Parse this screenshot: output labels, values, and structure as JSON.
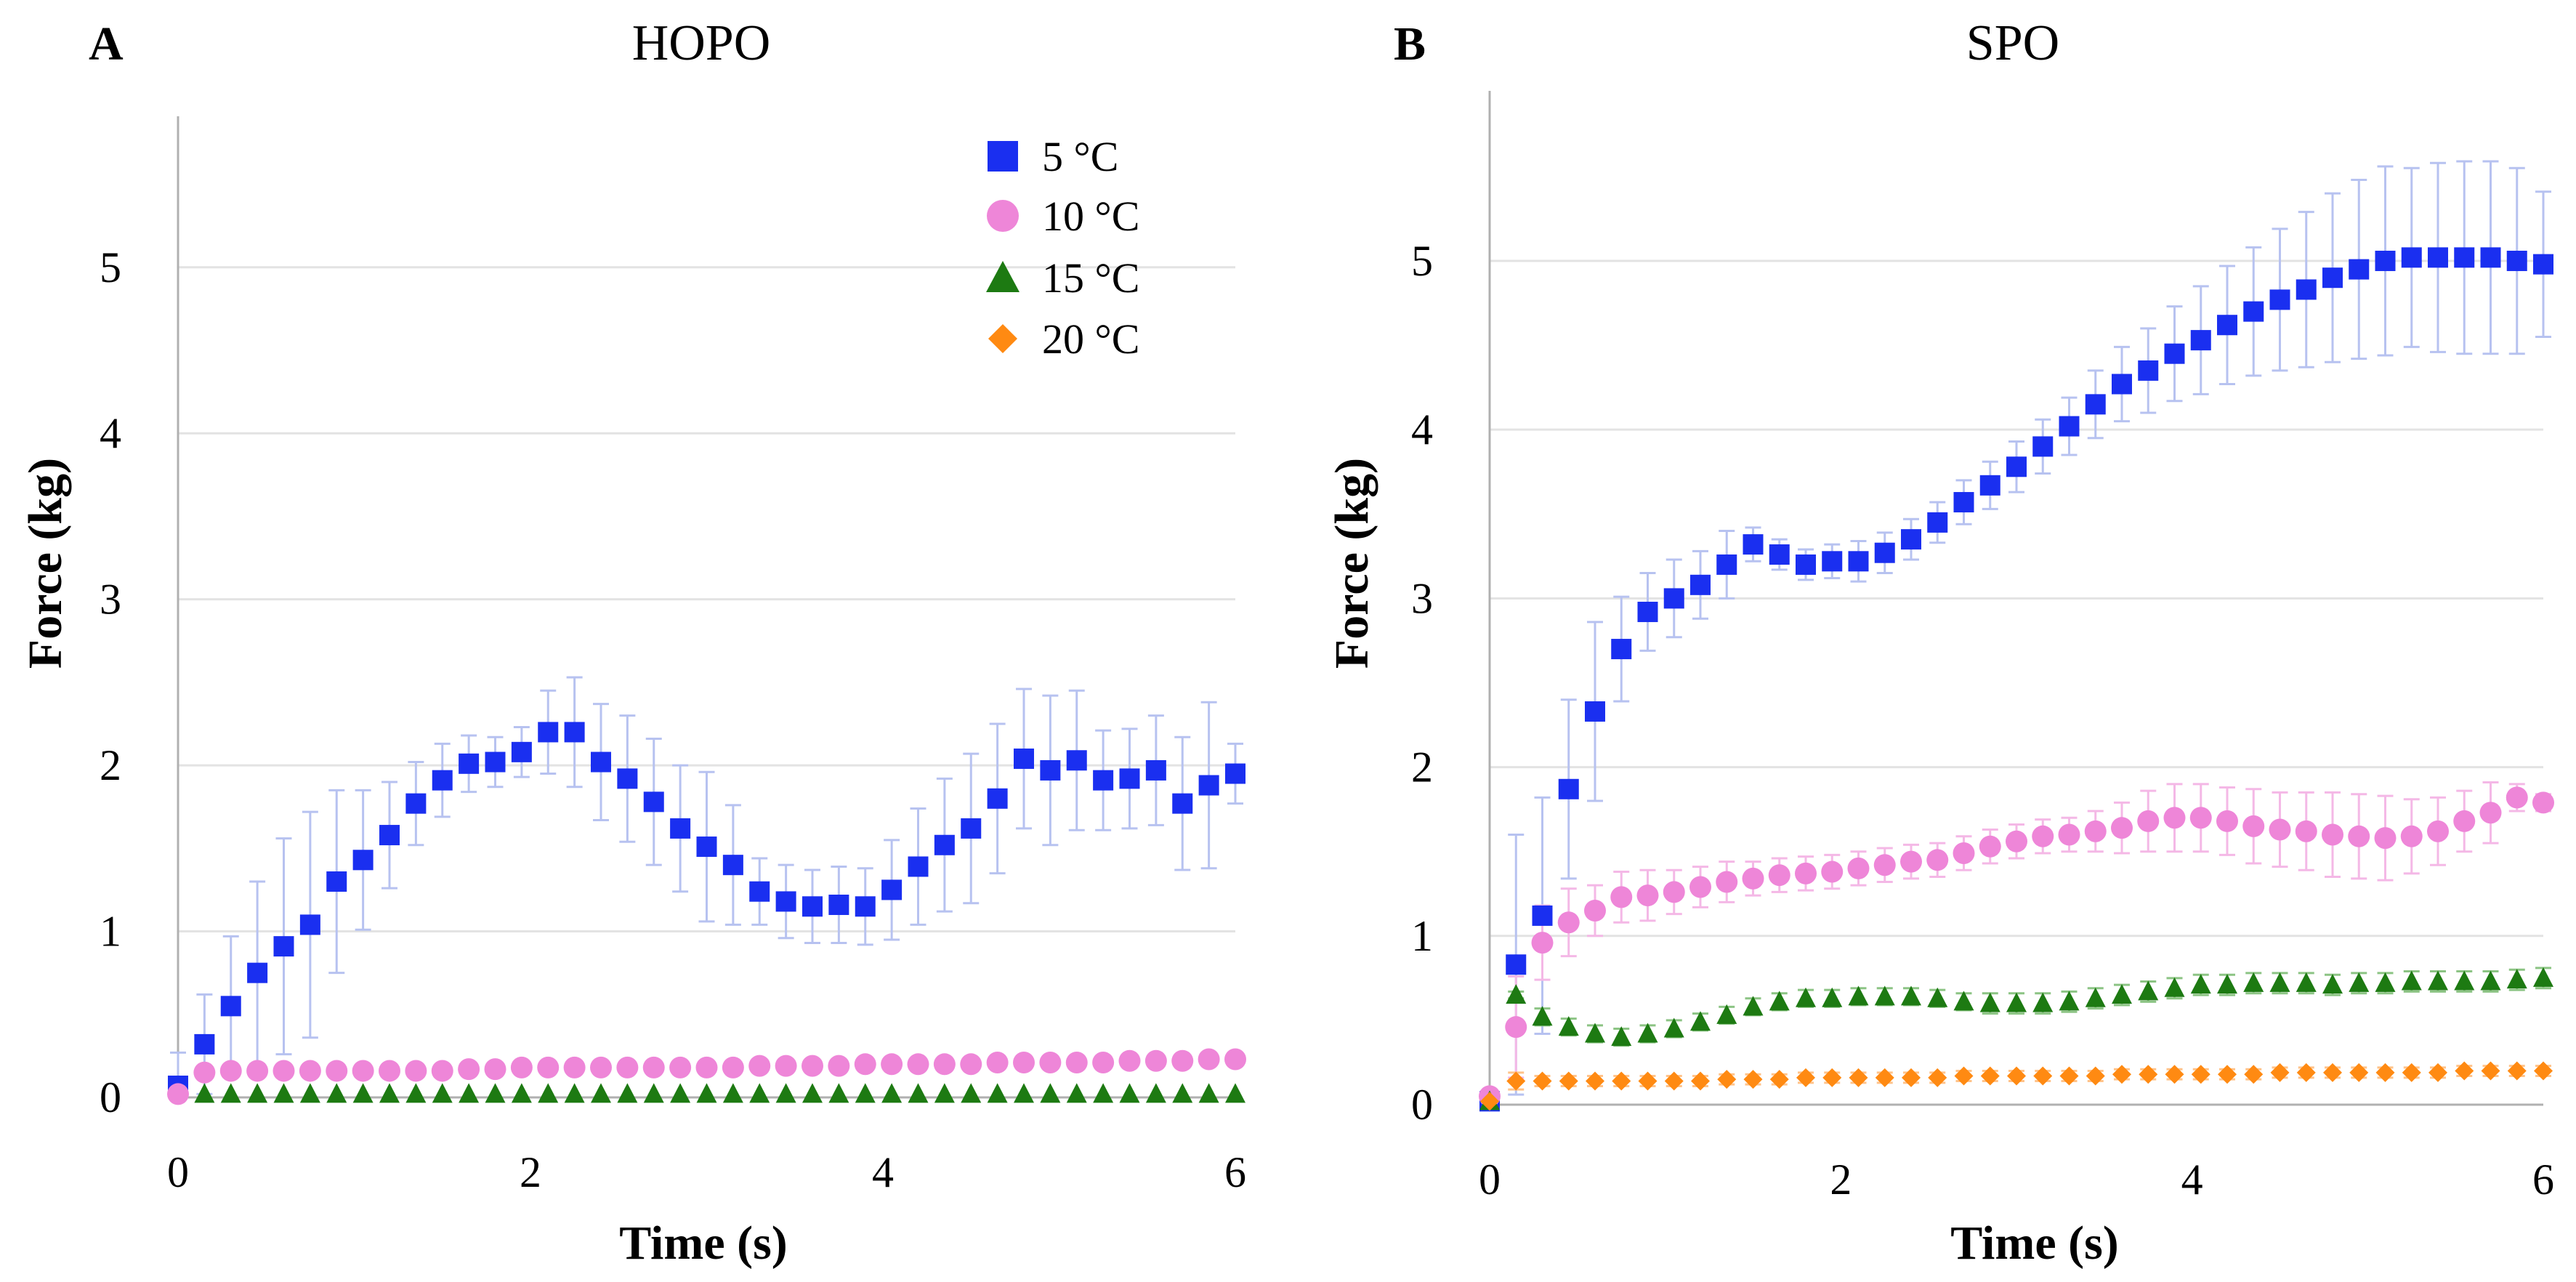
{
  "chart_data": [
    {
      "panel": "A",
      "type": "scatter",
      "title": "HOPO",
      "xlabel": "Time (s)",
      "ylabel": "Force (kg)",
      "xlim": [
        0,
        6
      ],
      "ylim": [
        0,
        5.8
      ],
      "xticks": [
        "0",
        "2",
        "4",
        "6"
      ],
      "yticks": [
        "0",
        "1",
        "2",
        "3",
        "4",
        "5"
      ],
      "grid": true,
      "legend": {
        "position": "top-right",
        "items": [
          {
            "label": "5 °C",
            "marker": "square",
            "color": "#1a2ff0"
          },
          {
            "label": "10 °C",
            "marker": "circle",
            "color": "#ee86d8"
          },
          {
            "label": "15 °C",
            "marker": "triangle",
            "color": "#1d7a12"
          },
          {
            "label": "20 °C",
            "marker": "diamond",
            "color": "#ff8a12"
          }
        ]
      },
      "series": [
        {
          "name": "5 °C",
          "marker": "square",
          "color": "#1a2ff0",
          "errorColor": "#b7c2f0",
          "x": [
            0,
            0.15,
            0.3,
            0.45,
            0.6,
            0.75,
            0.9,
            1.05,
            1.2,
            1.35,
            1.5,
            1.65,
            1.8,
            1.95,
            2.1,
            2.25,
            2.4,
            2.55,
            2.7,
            2.85,
            3.0,
            3.15,
            3.3,
            3.45,
            3.6,
            3.75,
            3.9,
            4.05,
            4.2,
            4.35,
            4.5,
            4.65,
            4.8,
            4.95,
            5.1,
            5.25,
            5.4,
            5.55,
            5.7,
            5.85,
            6.0
          ],
          "y": [
            0.07,
            0.32,
            0.55,
            0.75,
            0.91,
            1.04,
            1.3,
            1.43,
            1.58,
            1.77,
            1.91,
            2.01,
            2.02,
            2.08,
            2.2,
            2.2,
            2.02,
            1.92,
            1.78,
            1.62,
            1.51,
            1.4,
            1.24,
            1.18,
            1.15,
            1.16,
            1.15,
            1.25,
            1.39,
            1.52,
            1.62,
            1.8,
            2.04,
            1.97,
            2.03,
            1.91,
            1.92,
            1.97,
            1.77,
            1.88,
            1.95
          ],
          "err": [
            0.2,
            0.3,
            0.42,
            0.55,
            0.65,
            0.68,
            0.55,
            0.42,
            0.32,
            0.25,
            0.22,
            0.17,
            0.15,
            0.15,
            0.25,
            0.33,
            0.35,
            0.38,
            0.38,
            0.38,
            0.45,
            0.36,
            0.2,
            0.22,
            0.22,
            0.23,
            0.23,
            0.3,
            0.35,
            0.4,
            0.45,
            0.45,
            0.42,
            0.45,
            0.42,
            0.3,
            0.3,
            0.33,
            0.4,
            0.5,
            0.18
          ]
        },
        {
          "name": "10 °C",
          "marker": "circle",
          "color": "#ee86d8",
          "errorColor": "#f4b8e6",
          "x": [
            0,
            0.15,
            0.3,
            0.45,
            0.6,
            0.75,
            0.9,
            1.05,
            1.2,
            1.35,
            1.5,
            1.65,
            1.8,
            1.95,
            2.1,
            2.25,
            2.4,
            2.55,
            2.7,
            2.85,
            3.0,
            3.15,
            3.3,
            3.45,
            3.6,
            3.75,
            3.9,
            4.05,
            4.2,
            4.35,
            4.5,
            4.65,
            4.8,
            4.95,
            5.1,
            5.25,
            5.4,
            5.55,
            5.7,
            5.85,
            6.0
          ],
          "y": [
            0.02,
            0.15,
            0.16,
            0.16,
            0.16,
            0.16,
            0.16,
            0.16,
            0.16,
            0.16,
            0.16,
            0.17,
            0.17,
            0.18,
            0.18,
            0.18,
            0.18,
            0.18,
            0.18,
            0.18,
            0.18,
            0.18,
            0.19,
            0.19,
            0.19,
            0.19,
            0.2,
            0.2,
            0.2,
            0.2,
            0.2,
            0.21,
            0.21,
            0.21,
            0.21,
            0.21,
            0.22,
            0.22,
            0.22,
            0.23,
            0.23
          ],
          "err": [
            0,
            0.02,
            0.02,
            0.02,
            0.02,
            0.02,
            0.02,
            0.02,
            0.02,
            0.02,
            0.02,
            0.02,
            0.02,
            0.02,
            0.02,
            0.02,
            0.02,
            0.02,
            0.02,
            0.02,
            0.02,
            0.02,
            0.02,
            0.02,
            0.02,
            0.02,
            0.02,
            0.02,
            0.02,
            0.02,
            0.02,
            0.02,
            0.02,
            0.02,
            0.02,
            0.02,
            0.02,
            0.02,
            0.02,
            0.02,
            0.02
          ]
        },
        {
          "name": "15 °C",
          "marker": "triangle",
          "color": "#1d7a12",
          "errorColor": "#8cc484",
          "x": [
            0.15,
            0.3,
            0.45,
            0.6,
            0.75,
            0.9,
            1.05,
            1.2,
            1.35,
            1.5,
            1.65,
            1.8,
            1.95,
            2.1,
            2.25,
            2.4,
            2.55,
            2.7,
            2.85,
            3.0,
            3.15,
            3.3,
            3.45,
            3.6,
            3.75,
            3.9,
            4.05,
            4.2,
            4.35,
            4.5,
            4.65,
            4.8,
            4.95,
            5.1,
            5.25,
            5.4,
            5.55,
            5.7,
            5.85,
            6.0
          ],
          "y": [
            0.02,
            0.02,
            0.02,
            0.02,
            0.02,
            0.02,
            0.02,
            0.02,
            0.02,
            0.02,
            0.02,
            0.02,
            0.02,
            0.02,
            0.02,
            0.02,
            0.02,
            0.02,
            0.02,
            0.02,
            0.02,
            0.02,
            0.02,
            0.02,
            0.02,
            0.02,
            0.02,
            0.02,
            0.02,
            0.02,
            0.02,
            0.02,
            0.02,
            0.02,
            0.02,
            0.02,
            0.02,
            0.02,
            0.02,
            0.02
          ],
          "err": []
        }
      ]
    },
    {
      "panel": "B",
      "type": "scatter",
      "title": "SPO",
      "xlabel": "Time (s)",
      "ylabel": "Force (kg)",
      "xlim": [
        0,
        6
      ],
      "ylim": [
        0,
        5.9
      ],
      "xticks": [
        "0",
        "2",
        "4",
        "6"
      ],
      "yticks": [
        "0",
        "1",
        "2",
        "3",
        "4",
        "5"
      ],
      "grid": true,
      "series": [
        {
          "name": "5 °C",
          "marker": "square",
          "color": "#1a2ff0",
          "errorColor": "#b7c2f0",
          "x": [
            0,
            0.15,
            0.3,
            0.45,
            0.6,
            0.75,
            0.9,
            1.05,
            1.2,
            1.35,
            1.5,
            1.65,
            1.8,
            1.95,
            2.1,
            2.25,
            2.4,
            2.55,
            2.7,
            2.85,
            3.0,
            3.15,
            3.3,
            3.45,
            3.6,
            3.75,
            3.9,
            4.05,
            4.2,
            4.35,
            4.5,
            4.65,
            4.8,
            4.95,
            5.1,
            5.25,
            5.4,
            5.55,
            5.7,
            5.85,
            6.0
          ],
          "y": [
            0.02,
            0.83,
            1.12,
            1.87,
            2.33,
            2.7,
            2.92,
            3.0,
            3.08,
            3.2,
            3.32,
            3.26,
            3.2,
            3.22,
            3.22,
            3.27,
            3.35,
            3.45,
            3.57,
            3.67,
            3.78,
            3.9,
            4.02,
            4.15,
            4.27,
            4.35,
            4.45,
            4.53,
            4.62,
            4.7,
            4.77,
            4.83,
            4.9,
            4.95,
            5.0,
            5.02,
            5.02,
            5.02,
            5.02,
            5.0,
            4.98
          ],
          "err": [
            0.05,
            0.77,
            0.7,
            0.53,
            0.53,
            0.31,
            0.23,
            0.23,
            0.2,
            0.2,
            0.1,
            0.09,
            0.09,
            0.1,
            0.12,
            0.12,
            0.12,
            0.12,
            0.13,
            0.14,
            0.15,
            0.16,
            0.17,
            0.2,
            0.22,
            0.25,
            0.28,
            0.32,
            0.35,
            0.38,
            0.42,
            0.46,
            0.5,
            0.53,
            0.56,
            0.53,
            0.56,
            0.57,
            0.57,
            0.55,
            0.43
          ]
        },
        {
          "name": "10 °C",
          "marker": "circle",
          "color": "#ee86d8",
          "errorColor": "#f4b8e6",
          "x": [
            0,
            0.15,
            0.3,
            0.45,
            0.6,
            0.75,
            0.9,
            1.05,
            1.2,
            1.35,
            1.5,
            1.65,
            1.8,
            1.95,
            2.1,
            2.25,
            2.4,
            2.55,
            2.7,
            2.85,
            3.0,
            3.15,
            3.3,
            3.45,
            3.6,
            3.75,
            3.9,
            4.05,
            4.2,
            4.35,
            4.5,
            4.65,
            4.8,
            4.95,
            5.1,
            5.25,
            5.4,
            5.55,
            5.7,
            5.85,
            6.0
          ],
          "y": [
            0.05,
            0.46,
            0.96,
            1.08,
            1.15,
            1.23,
            1.24,
            1.26,
            1.29,
            1.32,
            1.34,
            1.36,
            1.37,
            1.38,
            1.4,
            1.42,
            1.44,
            1.45,
            1.49,
            1.53,
            1.56,
            1.59,
            1.6,
            1.62,
            1.64,
            1.68,
            1.7,
            1.7,
            1.68,
            1.65,
            1.63,
            1.62,
            1.6,
            1.59,
            1.58,
            1.59,
            1.62,
            1.68,
            1.73,
            1.82,
            1.79
          ],
          "err": [
            0,
            0.3,
            0.22,
            0.2,
            0.15,
            0.15,
            0.15,
            0.13,
            0.12,
            0.12,
            0.1,
            0.1,
            0.1,
            0.1,
            0.1,
            0.1,
            0.1,
            0.1,
            0.1,
            0.1,
            0.1,
            0.1,
            0.1,
            0.12,
            0.15,
            0.18,
            0.2,
            0.2,
            0.2,
            0.22,
            0.22,
            0.23,
            0.25,
            0.25,
            0.25,
            0.22,
            0.2,
            0.18,
            0.18,
            0.08,
            0.05
          ]
        },
        {
          "name": "15 °C",
          "marker": "triangle",
          "color": "#1d7a12",
          "errorColor": "#8cc484",
          "x": [
            0,
            0.15,
            0.3,
            0.45,
            0.6,
            0.75,
            0.9,
            1.05,
            1.2,
            1.35,
            1.5,
            1.65,
            1.8,
            1.95,
            2.1,
            2.25,
            2.4,
            2.55,
            2.7,
            2.85,
            3.0,
            3.15,
            3.3,
            3.45,
            3.6,
            3.75,
            3.9,
            4.05,
            4.2,
            4.35,
            4.5,
            4.65,
            4.8,
            4.95,
            5.1,
            5.25,
            5.4,
            5.55,
            5.7,
            5.85,
            6.0
          ],
          "y": [
            0.02,
            0.65,
            0.52,
            0.46,
            0.42,
            0.4,
            0.42,
            0.45,
            0.49,
            0.53,
            0.58,
            0.61,
            0.63,
            0.63,
            0.64,
            0.64,
            0.64,
            0.63,
            0.61,
            0.6,
            0.6,
            0.6,
            0.61,
            0.63,
            0.65,
            0.67,
            0.69,
            0.71,
            0.71,
            0.72,
            0.72,
            0.72,
            0.71,
            0.72,
            0.72,
            0.73,
            0.73,
            0.73,
            0.73,
            0.74,
            0.75
          ],
          "err": [
            0,
            0.02,
            0.05,
            0.05,
            0.05,
            0.05,
            0.05,
            0.05,
            0.05,
            0.05,
            0.05,
            0.05,
            0.05,
            0.05,
            0.05,
            0.05,
            0.05,
            0.05,
            0.05,
            0.06,
            0.06,
            0.06,
            0.06,
            0.06,
            0.06,
            0.06,
            0.06,
            0.06,
            0.06,
            0.06,
            0.06,
            0.06,
            0.06,
            0.06,
            0.06,
            0.06,
            0.06,
            0.06,
            0.06,
            0.06,
            0.06
          ]
        },
        {
          "name": "20 °C",
          "marker": "diamond",
          "color": "#ff8a12",
          "errorColor": "#ffc38a",
          "x": [
            0,
            0.15,
            0.3,
            0.45,
            0.6,
            0.75,
            0.9,
            1.05,
            1.2,
            1.35,
            1.5,
            1.65,
            1.8,
            1.95,
            2.1,
            2.25,
            2.4,
            2.55,
            2.7,
            2.85,
            3.0,
            3.15,
            3.3,
            3.45,
            3.6,
            3.75,
            3.9,
            4.05,
            4.2,
            4.35,
            4.5,
            4.65,
            4.8,
            4.95,
            5.1,
            5.25,
            5.4,
            5.55,
            5.7,
            5.85,
            6.0
          ],
          "y": [
            0.02,
            0.14,
            0.14,
            0.14,
            0.14,
            0.14,
            0.14,
            0.14,
            0.14,
            0.15,
            0.15,
            0.15,
            0.16,
            0.16,
            0.16,
            0.16,
            0.16,
            0.16,
            0.17,
            0.17,
            0.17,
            0.17,
            0.17,
            0.17,
            0.18,
            0.18,
            0.18,
            0.18,
            0.18,
            0.18,
            0.19,
            0.19,
            0.19,
            0.19,
            0.19,
            0.19,
            0.19,
            0.2,
            0.2,
            0.2,
            0.2
          ],
          "err": [
            0,
            0.05,
            0.03,
            0.03,
            0.03,
            0.03,
            0.03,
            0.03,
            0.03,
            0.03,
            0.03,
            0.03,
            0.03,
            0.03,
            0.03,
            0.03,
            0.03,
            0.03,
            0.03,
            0.03,
            0.03,
            0.03,
            0.03,
            0.03,
            0.03,
            0.03,
            0.03,
            0.03,
            0.03,
            0.03,
            0.03,
            0.03,
            0.03,
            0.03,
            0.03,
            0.03,
            0.03,
            0.03,
            0.03,
            0.03,
            0.03
          ]
        }
      ]
    }
  ]
}
